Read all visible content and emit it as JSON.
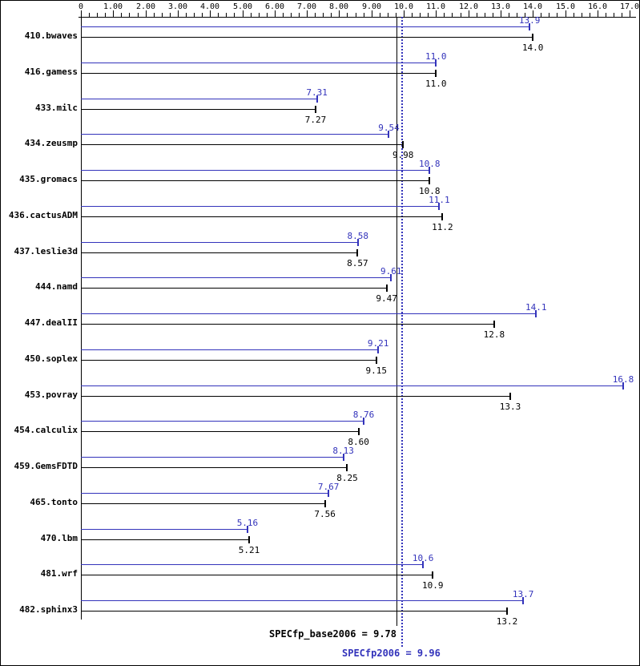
{
  "chart_data": {
    "type": "bar",
    "orientation": "horizontal",
    "title": "",
    "xlabel": "",
    "ylabel": "",
    "xlim": [
      0,
      17
    ],
    "grid": false,
    "axis_tick_labels": [
      "0",
      "1.00",
      "2.00",
      "3.00",
      "4.00",
      "5.00",
      "6.00",
      "7.00",
      "8.00",
      "9.00",
      "10.0",
      "11.0",
      "12.0",
      "13.0",
      "14.0",
      "15.0",
      "16.0",
      "17.0"
    ],
    "series": [
      {
        "name": "SPECfp2006 (peak)",
        "color": "#3333bb"
      },
      {
        "name": "SPECfp_base2006 (base)",
        "color": "#000000"
      }
    ],
    "benchmarks": [
      {
        "name": "410.bwaves",
        "peak": 13.9,
        "base": 14.0,
        "peak_label": "13.9",
        "base_label": "14.0"
      },
      {
        "name": "416.gamess",
        "peak": 11.0,
        "base": 11.0,
        "peak_label": "11.0",
        "base_label": "11.0"
      },
      {
        "name": "433.milc",
        "peak": 7.31,
        "base": 7.27,
        "peak_label": "7.31",
        "base_label": "7.27"
      },
      {
        "name": "434.zeusmp",
        "peak": 9.54,
        "base": 9.98,
        "peak_label": "9.54",
        "base_label": "9.98"
      },
      {
        "name": "435.gromacs",
        "peak": 10.8,
        "base": 10.8,
        "peak_label": "10.8",
        "base_label": "10.8"
      },
      {
        "name": "436.cactusADM",
        "peak": 11.1,
        "base": 11.2,
        "peak_label": "11.1",
        "base_label": "11.2"
      },
      {
        "name": "437.leslie3d",
        "peak": 8.58,
        "base": 8.57,
        "peak_label": "8.58",
        "base_label": "8.57"
      },
      {
        "name": "444.namd",
        "peak": 9.61,
        "base": 9.47,
        "peak_label": "9.61",
        "base_label": "9.47"
      },
      {
        "name": "447.dealII",
        "peak": 14.1,
        "base": 12.8,
        "peak_label": "14.1",
        "base_label": "12.8"
      },
      {
        "name": "450.soplex",
        "peak": 9.21,
        "base": 9.15,
        "peak_label": "9.21",
        "base_label": "9.15"
      },
      {
        "name": "453.povray",
        "peak": 16.8,
        "base": 13.3,
        "peak_label": "16.8",
        "base_label": "13.3"
      },
      {
        "name": "454.calculix",
        "peak": 8.76,
        "base": 8.6,
        "peak_label": "8.76",
        "base_label": "8.60"
      },
      {
        "name": "459.GemsFDTD",
        "peak": 8.13,
        "base": 8.25,
        "peak_label": "8.13",
        "base_label": "8.25"
      },
      {
        "name": "465.tonto",
        "peak": 7.67,
        "base": 7.56,
        "peak_label": "7.67",
        "base_label": "7.56"
      },
      {
        "name": "470.lbm",
        "peak": 5.16,
        "base": 5.21,
        "peak_label": "5.16",
        "base_label": "5.21"
      },
      {
        "name": "481.wrf",
        "peak": 10.6,
        "base": 10.9,
        "peak_label": "10.6",
        "base_label": "10.9"
      },
      {
        "name": "482.sphinx3",
        "peak": 13.7,
        "base": 13.2,
        "peak_label": "13.7",
        "base_label": "13.2"
      }
    ],
    "reference_lines": [
      {
        "name": "base_mean",
        "value": 9.78,
        "style": "solid",
        "color": "#000000"
      },
      {
        "name": "peak_mean",
        "value": 9.96,
        "style": "dotted",
        "color": "#3333bb"
      }
    ],
    "summary": {
      "base_text": "SPECfp_base2006 = 9.78",
      "peak_text": "SPECfp2006 = 9.96"
    }
  }
}
